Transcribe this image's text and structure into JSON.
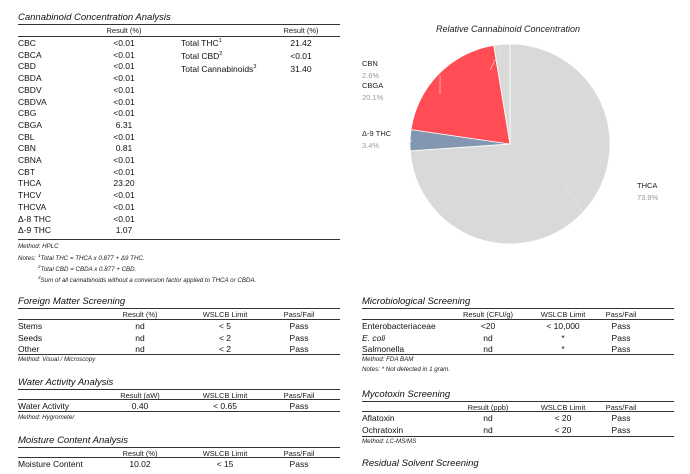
{
  "cannabinoid": {
    "title": "Cannabinoid Concentration Analysis",
    "result_header": "Result (%)",
    "rows": [
      {
        "name": "CBC",
        "value": "<0.01"
      },
      {
        "name": "CBCA",
        "value": "<0.01"
      },
      {
        "name": "CBD",
        "value": "<0.01"
      },
      {
        "name": "CBDA",
        "value": "<0.01"
      },
      {
        "name": "CBDV",
        "value": "<0.01"
      },
      {
        "name": "CBDVA",
        "value": "<0.01"
      },
      {
        "name": "CBG",
        "value": "<0.01"
      },
      {
        "name": "CBGA",
        "value": "6.31"
      },
      {
        "name": "CBL",
        "value": "<0.01"
      },
      {
        "name": "CBN",
        "value": "0.81"
      },
      {
        "name": "CBNA",
        "value": "<0.01"
      },
      {
        "name": "CBT",
        "value": "<0.01"
      },
      {
        "name": "THCA",
        "value": "23.20"
      },
      {
        "name": "THCV",
        "value": "<0.01"
      },
      {
        "name": "THCVA",
        "value": "<0.01"
      },
      {
        "name": "Δ-8 THC",
        "value": "<0.01"
      },
      {
        "name": "Δ-9 THC",
        "value": "1.07"
      }
    ],
    "totals_header": "Result (%)",
    "totals": [
      {
        "name": "Total THC",
        "sup": "1",
        "value": "21.42"
      },
      {
        "name": "Total CBD",
        "sup": "2",
        "value": "<0.01"
      },
      {
        "name": "Total Cannabinoids",
        "sup": "3",
        "value": "31.40"
      }
    ],
    "method": "Method: HPLC",
    "notes_label": "Notes:",
    "notes": [
      {
        "sup": "1",
        "text": "Total THC = THCA x 0.877 + Δ9 THC."
      },
      {
        "sup": "2",
        "text": "Total CBD = CBDA x 0.877 + CBD."
      },
      {
        "sup": "3",
        "text": "Sum of all cannabinoids without a conversion factor applied to THCA or CBDA."
      }
    ]
  },
  "chart_data": {
    "type": "pie",
    "title": "Relative Cannabinoid Concentration",
    "slices": [
      {
        "label": "THCA",
        "value": 73.9,
        "display": "73.9%",
        "color": "#d9d9d9"
      },
      {
        "label": "Δ-9 THC",
        "value": 3.4,
        "display": "3.4%",
        "color": "#8497b0"
      },
      {
        "label": "CBGA",
        "value": 20.1,
        "display": "20.1%",
        "color": "#ff4c55"
      },
      {
        "label": "CBN",
        "value": 2.6,
        "display": "2.6%",
        "color": "#d9d9d9"
      }
    ]
  },
  "foreign": {
    "title": "Foreign Matter Screening",
    "headers": [
      "Result (%)",
      "WSLCB Limit",
      "Pass/Fail"
    ],
    "rows": [
      {
        "name": "Stems",
        "result": "nd",
        "limit": "< 5",
        "pf": "Pass"
      },
      {
        "name": "Seeds",
        "result": "nd",
        "limit": "< 2",
        "pf": "Pass"
      },
      {
        "name": "Other",
        "result": "nd",
        "limit": "< 2",
        "pf": "Pass"
      }
    ],
    "method": "Method: Visual / Microscopy"
  },
  "water": {
    "title": "Water Activity Analysis",
    "headers": [
      "Result (aW)",
      "WSLCB Limit",
      "Pass/Fail"
    ],
    "rows": [
      {
        "name": "Water Activity",
        "result": "0.40",
        "limit": "< 0.65",
        "pf": "Pass"
      }
    ],
    "method": "Method: Hygrometer"
  },
  "moisture": {
    "title": "Moisture Content Analysis",
    "headers": [
      "Result (%)",
      "WSLCB Limit",
      "Pass/Fail"
    ],
    "rows": [
      {
        "name": "Moisture Content",
        "result": "10.02",
        "limit": "< 15",
        "pf": "Pass"
      }
    ]
  },
  "micro": {
    "title": "Microbiological Screening",
    "headers": [
      "Result (CFU/g)",
      "WSLCB Limit",
      "Pass/Fail"
    ],
    "rows": [
      {
        "name": "Enterobacteriaceae",
        "result": "<20",
        "limit": "< 10,000",
        "pf": "Pass",
        "italic": false
      },
      {
        "name": "E. coli",
        "result": "nd",
        "limit": "*",
        "pf": "Pass",
        "italic": true
      },
      {
        "name": "Salmonella",
        "result": "nd",
        "limit": "*",
        "pf": "Pass",
        "italic": false
      }
    ],
    "method": "Method: FDA BAM",
    "notes": "Notes: * Not detected in 1 gram."
  },
  "myco": {
    "title": "Mycotoxin Screening",
    "headers": [
      "Result (ppb)",
      "WSLCB Limit",
      "Pass/Fail"
    ],
    "rows": [
      {
        "name": "Aflatoxin",
        "result": "nd",
        "limit": "< 20",
        "pf": "Pass"
      },
      {
        "name": "Ochratoxin",
        "result": "nd",
        "limit": "< 20",
        "pf": "Pass"
      }
    ],
    "method": "Method: LC-MS/MS"
  },
  "residual": {
    "title": "Residual Solvent Screening"
  }
}
